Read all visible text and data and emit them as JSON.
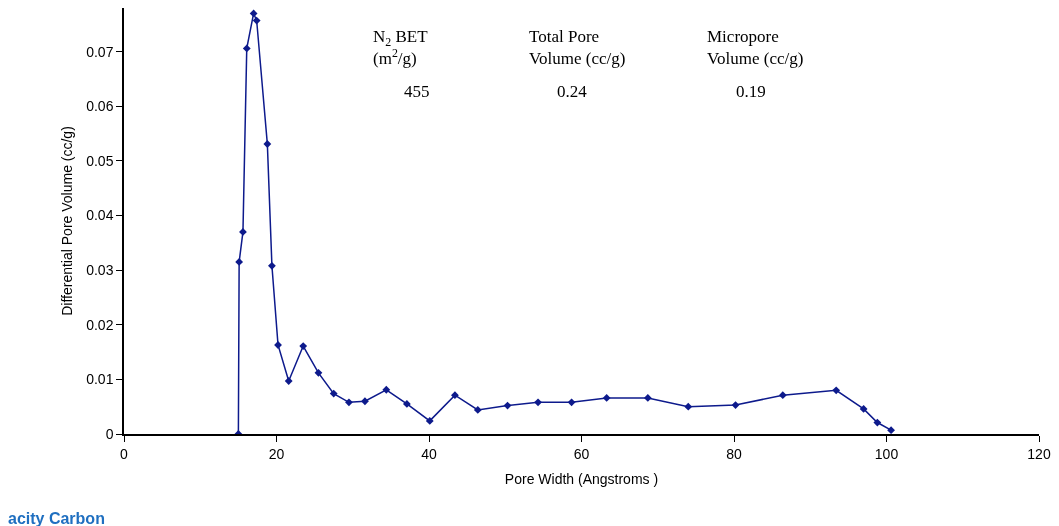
{
  "chart_data": {
    "type": "line",
    "xlabel": "Pore Width (Angstroms )",
    "ylabel": "Differential Pore Volume (cc/g)",
    "x": [
      15,
      15.1,
      15.6,
      16.1,
      17.0,
      17.4,
      18.8,
      19.4,
      20.2,
      21.6,
      23.5,
      25.5,
      27.5,
      29.5,
      31.6,
      34.4,
      37.1,
      40.1,
      43.4,
      46.4,
      50.3,
      54.3,
      58.7,
      63.3,
      68.7,
      74.0,
      80.2,
      86.4,
      93.4,
      97.0,
      98.8,
      100.6
    ],
    "series": [
      {
        "color": "#0d1a8c",
        "values": [
          0,
          0.0315,
          0.037,
          0.0706,
          0.077,
          0.0757,
          0.0531,
          0.0308,
          0.0163,
          0.0097,
          0.0161,
          0.0112,
          0.0074,
          0.0058,
          0.006,
          0.0081,
          0.0055,
          0.0024,
          0.0071,
          0.0044,
          0.0052,
          0.0058,
          0.0058,
          0.0066,
          0.0066,
          0.005,
          0.0053,
          0.0071,
          0.008,
          0.0046,
          0.0021,
          0.0007
        ]
      }
    ],
    "xlim": [
      0,
      120
    ],
    "xticks": [
      0,
      20,
      40,
      60,
      80,
      100,
      120
    ],
    "ylim": [
      0,
      0.078
    ],
    "yticks": [
      0,
      0.01,
      0.02,
      0.03,
      0.04,
      0.05,
      0.06,
      0.07
    ],
    "marker": "diamond",
    "annotations": [
      "N$_{2}$ BET (m$^{2}$/g)",
      "Total Pore Volume (cc/g)",
      "Micropore Volume (cc/g)",
      "455",
      "0.24",
      "0.19",
      "acity Carbon"
    ]
  }
}
